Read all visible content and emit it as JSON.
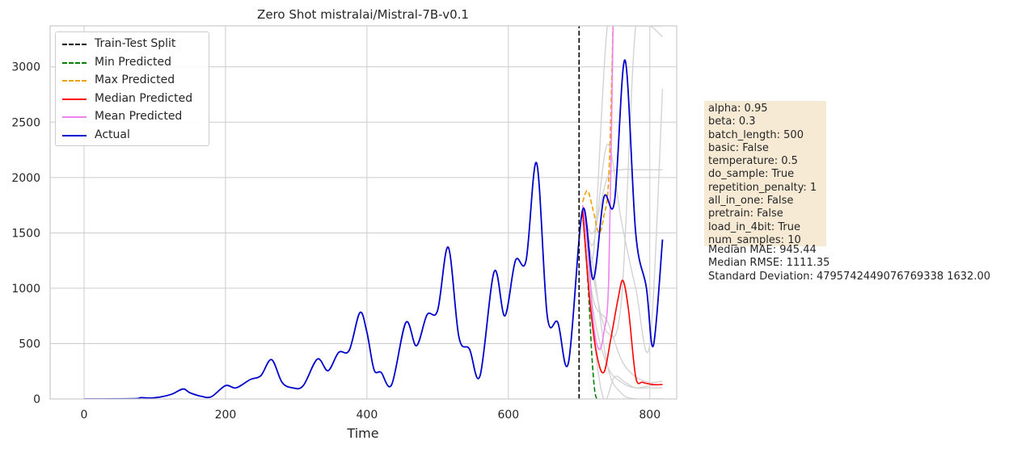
{
  "chart_data": {
    "type": "line",
    "title": "Zero Shot mistralai/Mistral-7B-v0.1",
    "xlabel": "Time",
    "ylabel": "",
    "xlim": [
      -48,
      838
    ],
    "ylim": [
      0,
      3370
    ],
    "xticks": [
      0,
      200,
      400,
      600,
      800
    ],
    "yticks": [
      0,
      500,
      1000,
      1500,
      2000,
      2500,
      3000
    ],
    "grid": true,
    "legend_position": "top-left",
    "split_x": 700,
    "series": [
      {
        "name": "Actual",
        "color": "#0000cc",
        "style": "solid",
        "x": [
          0,
          70,
          80,
          95,
          110,
          125,
          140,
          150,
          165,
          180,
          200,
          215,
          235,
          250,
          265,
          280,
          295,
          310,
          330,
          345,
          360,
          375,
          390,
          400,
          410,
          420,
          435,
          455,
          470,
          485,
          500,
          515,
          530,
          545,
          560,
          580,
          595,
          610,
          625,
          640,
          655,
          670,
          685,
          705,
          720,
          735,
          750,
          765,
          780,
          795,
          805,
          818
        ],
        "values": [
          0,
          2,
          12,
          8,
          20,
          45,
          90,
          55,
          25,
          20,
          120,
          100,
          175,
          210,
          355,
          150,
          100,
          120,
          360,
          255,
          420,
          440,
          780,
          600,
          265,
          240,
          130,
          690,
          480,
          760,
          800,
          1370,
          560,
          450,
          210,
          1150,
          750,
          1250,
          1250,
          2130,
          750,
          690,
          330,
          1710,
          1080,
          1820,
          1780,
          3060,
          1500,
          1010,
          480,
          1440
        ]
      },
      {
        "name": "Median Predicted",
        "color": "#ff0000",
        "style": "solid",
        "x": [
          705,
          715,
          725,
          735,
          745,
          755,
          762,
          770,
          780,
          790,
          805,
          818
        ],
        "values": [
          1700,
          900,
          400,
          240,
          550,
          900,
          1070,
          800,
          200,
          150,
          130,
          130
        ]
      },
      {
        "name": "Mean Predicted",
        "color": "#ee82ee",
        "style": "solid",
        "x": [
          705,
          712,
          720,
          728,
          735,
          742,
          748
        ],
        "values": [
          1750,
          1400,
          700,
          450,
          600,
          1100,
          3370
        ]
      },
      {
        "name": "Min Predicted",
        "color": "#008000",
        "style": "dashed",
        "x": [
          705,
          712,
          718,
          722,
          725
        ],
        "values": [
          1680,
          1100,
          400,
          80,
          0
        ]
      },
      {
        "name": "Max Predicted",
        "color": "#f0a000",
        "style": "dashed",
        "x": [
          705,
          712,
          720,
          728,
          735,
          742,
          748
        ],
        "values": [
          1780,
          1880,
          1700,
          1500,
          1650,
          2000,
          3370
        ]
      },
      {
        "name": "Train-Test Split",
        "color": "#000000",
        "style": "dashed",
        "x": [
          700,
          700
        ],
        "values": [
          0,
          3370
        ]
      }
    ],
    "sample_lines": [
      {
        "x": [
          705,
          720,
          740,
          760,
          780,
          800,
          818
        ],
        "values": [
          1600,
          1200,
          300,
          50,
          0,
          0,
          0
        ]
      },
      {
        "x": [
          705,
          720,
          740,
          760,
          780,
          800,
          818
        ],
        "values": [
          1700,
          1500,
          2000,
          2070,
          2070,
          2070,
          2070
        ]
      },
      {
        "x": [
          705,
          720,
          740,
          760,
          780,
          800,
          818
        ],
        "values": [
          1650,
          900,
          700,
          350,
          200,
          150,
          160
        ]
      },
      {
        "x": [
          705,
          720,
          740,
          760,
          780,
          800,
          818
        ],
        "values": [
          1750,
          1400,
          2300,
          1600,
          1000,
          500,
          2800
        ]
      },
      {
        "x": [
          705,
          720,
          740,
          760,
          780,
          800,
          818
        ],
        "values": [
          1720,
          800,
          300,
          150,
          100,
          120,
          130
        ]
      },
      {
        "x": [
          705,
          720,
          740,
          760,
          780,
          800,
          818
        ],
        "values": [
          1680,
          1100,
          600,
          900,
          3370,
          3370,
          3270
        ]
      },
      {
        "x": [
          705,
          720,
          735,
          750,
          765,
          780,
          800,
          818
        ],
        "values": [
          1700,
          600,
          0,
          200,
          150,
          100,
          100,
          100
        ]
      },
      {
        "x": [
          705,
          720,
          740,
          760,
          780,
          800,
          818
        ],
        "values": [
          1740,
          1300,
          3370,
          3370,
          3370,
          3370,
          3370
        ]
      }
    ],
    "sample_color": "#d3d3d3",
    "legend_order": [
      "Train-Test Split",
      "Min Predicted",
      "Max Predicted",
      "Median Predicted",
      "Mean Predicted",
      "Actual"
    ]
  },
  "info_box": {
    "lines": [
      "alpha: 0.95",
      "beta: 0.3",
      "batch_length: 500",
      "basic: False",
      "temperature: 0.5",
      "do_sample: True",
      "repetition_penalty: 1",
      "all_in_one: False",
      "pretrain: False",
      "load_in_4bit: True",
      "num_samples: 10"
    ],
    "background": "#f7ead5"
  },
  "metrics": {
    "lines": [
      "Median MAE: 945.44",
      "Median RMSE: 1111.35",
      "Standard Deviation: 4795742449076769338 1632.00"
    ]
  }
}
